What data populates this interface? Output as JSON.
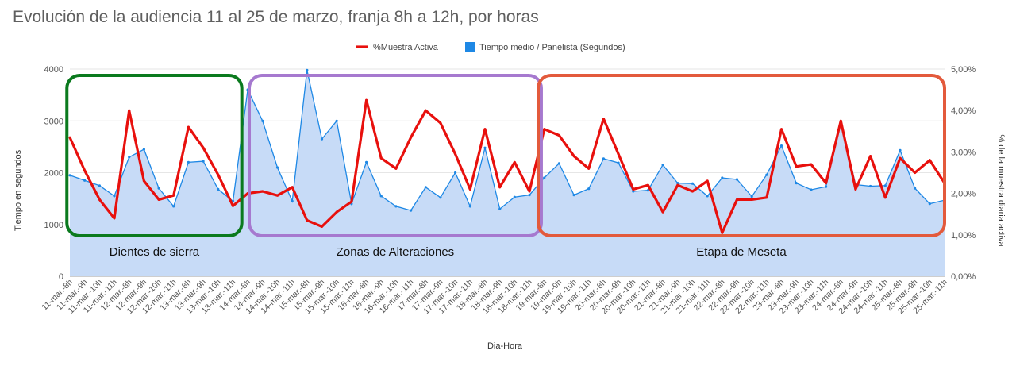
{
  "chart_data": {
    "type": "area",
    "title": "Evolución de la audiencia 11 al 25 de marzo, franja 8h a 12h, por horas",
    "xlabel": "Dia-Hora",
    "ylabel": "Tiempo en segundos",
    "y2label": "% de la muestra diaria activa",
    "ylim": [
      0,
      4000
    ],
    "y2lim": [
      0,
      5
    ],
    "yticks": [
      "0",
      "1000",
      "2000",
      "3000",
      "4000"
    ],
    "y2ticks": [
      "0,00%",
      "1,00%",
      "2,00%",
      "3,00%",
      "4,00%",
      "5,00%"
    ],
    "legend_position": "top",
    "grid": true,
    "categories": [
      "11-mar.-8h",
      "11-mar.-9h",
      "11-mar.-10h",
      "11-mar.-11h",
      "12-mar.-8h",
      "12-mar.-9h",
      "12-mar.-10h",
      "12-mar.-11h",
      "13-mar.-8h",
      "13-mar.-9h",
      "13-mar.-10h",
      "13-mar.-11h",
      "14-mar.-8h",
      "14-mar.-9h",
      "14-mar.-10h",
      "14-mar.-11h",
      "15-mar.-8h",
      "15-mar.-9h",
      "15-mar.-10h",
      "15-mar.-11h",
      "16-mar.-8h",
      "16-mar.-9h",
      "16-mar.-10h",
      "16-mar.-11h",
      "17-mar.-8h",
      "17-mar.-9h",
      "17-mar.-10h",
      "17-mar.-11h",
      "18-mar.-8h",
      "18-mar.-9h",
      "18-mar.-10h",
      "18-mar.-11h",
      "19-mar.-8h",
      "19-mar.-9h",
      "19-mar.-10h",
      "19-mar.-11h",
      "20-mar.-8h",
      "20-mar.-9h",
      "20-mar.-10h",
      "20-mar.-11h",
      "21-mar.-8h",
      "21-mar.-9h",
      "21-mar.-10h",
      "21-mar.-11h",
      "22-mar.-8h",
      "22-mar.-9h",
      "22-mar.-10h",
      "22-mar.-11h",
      "23-mar.-8h",
      "23-mar.-9h",
      "23-mar.-10h",
      "23-mar.-11h",
      "24-mar.-8h",
      "24-mar.-9h",
      "24-mar.-10h",
      "24-mar.-11h",
      "25-mar.-8h",
      "25-mar.-9h",
      "25-mar.-10h",
      "25-mar.-11h"
    ],
    "series": [
      {
        "name": "Tiempo medio / Panelista (Segundos)",
        "axis": "left",
        "color": "#1e88e5",
        "fill": "#c7dbf7",
        "values": [
          1950,
          1850,
          1750,
          1550,
          2300,
          2450,
          1700,
          1350,
          2200,
          2220,
          1680,
          1450,
          3600,
          3000,
          2100,
          1450,
          3980,
          2650,
          3000,
          1400,
          2200,
          1550,
          1350,
          1270,
          1720,
          1520,
          2000,
          1350,
          2480,
          1300,
          1530,
          1570,
          1900,
          2180,
          1570,
          1690,
          2270,
          2190,
          1640,
          1660,
          2150,
          1800,
          1790,
          1550,
          1900,
          1870,
          1540,
          1960,
          2520,
          1800,
          1670,
          1730,
          2980,
          1770,
          1740,
          1750,
          2430,
          1700,
          1400,
          1470
        ]
      },
      {
        "name": "%Muestra Activa",
        "axis": "right",
        "color": "#e8100d",
        "values": [
          3.35,
          2.55,
          1.85,
          1.4,
          4.0,
          2.3,
          1.85,
          1.95,
          3.6,
          3.1,
          2.45,
          1.7,
          2.0,
          2.05,
          1.95,
          2.15,
          1.35,
          1.2,
          1.55,
          1.8,
          4.25,
          2.85,
          2.6,
          3.35,
          4.0,
          3.7,
          2.95,
          2.1,
          3.55,
          2.15,
          2.75,
          2.05,
          3.55,
          3.4,
          2.9,
          2.6,
          3.8,
          2.95,
          2.1,
          2.2,
          1.55,
          2.2,
          2.05,
          2.3,
          1.05,
          1.85,
          1.85,
          1.9,
          3.55,
          2.65,
          2.7,
          2.25,
          3.75,
          2.1,
          2.9,
          1.9,
          2.85,
          2.5,
          2.8,
          2.25
        ]
      }
    ],
    "annotations": [
      {
        "label": "Dientes de sierra",
        "color": "#0b7a1e"
      },
      {
        "label": "Zonas de Alteraciones",
        "color": "#a679cf"
      },
      {
        "label": "Etapa de Meseta",
        "color": "#e35a3c"
      }
    ]
  }
}
